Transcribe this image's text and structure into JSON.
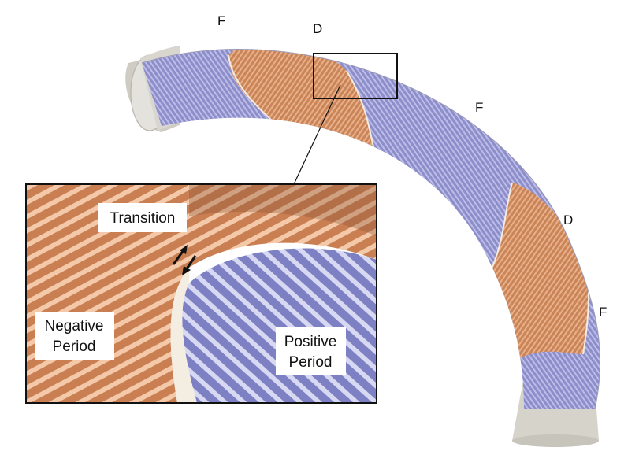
{
  "segment_labels": {
    "top_f": "F",
    "top_d": "D",
    "right_f": "F",
    "right_d": "D",
    "lower_f": "F"
  },
  "inset": {
    "transition": "Transition",
    "negative_line1": "Negative",
    "negative_line2": "Period",
    "positive_line1": "Positive",
    "positive_line2": "Period"
  },
  "colors": {
    "copper": "#c98457",
    "copper_light": "#e7a57a",
    "violet": "#8c8dc9",
    "violet_light": "#b4b5e4",
    "pipe_gray": "#d9d6cf",
    "pipe_shadow": "#b9b6ae",
    "frame": "#111111"
  }
}
